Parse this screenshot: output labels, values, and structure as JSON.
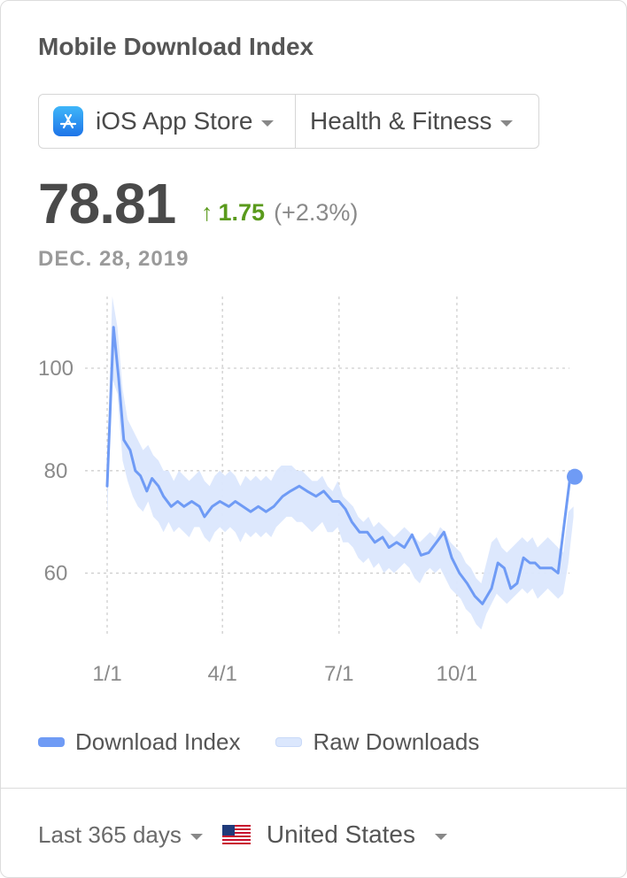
{
  "header": {
    "title": "Mobile Download Index"
  },
  "selector": {
    "store_label": "iOS App Store",
    "category_label": "Health & Fitness"
  },
  "summary": {
    "value": "78.81",
    "change_arrow": "↑",
    "change_abs": "1.75",
    "change_pct": "(+2.3%)",
    "date": "DEC. 28, 2019"
  },
  "colors": {
    "index_line": "#6f9bf5",
    "raw_band": "#dbe7fd",
    "positive_change": "#5a9a1c",
    "grid": "#cfcfcf"
  },
  "chart_data": {
    "type": "line",
    "y_ticks": [
      "100",
      "80",
      "60"
    ],
    "y_tick_values": [
      100,
      80,
      60
    ],
    "ylim": [
      48,
      114
    ],
    "xlim": [
      0,
      365
    ],
    "x_ticks": [
      "1/1",
      "4/1",
      "7/1",
      "10/1"
    ],
    "x_tick_values": [
      0,
      90,
      181,
      273
    ],
    "grid": true,
    "legend_position": "bottom",
    "series": [
      {
        "name": "Download Index",
        "style": "line",
        "x": [
          0,
          5,
          9,
          13,
          18,
          22,
          26,
          31,
          35,
          40,
          44,
          50,
          55,
          60,
          66,
          72,
          76,
          82,
          88,
          95,
          100,
          106,
          112,
          118,
          124,
          130,
          137,
          143,
          150,
          156,
          163,
          169,
          176,
          181,
          186,
          191,
          197,
          203,
          209,
          215,
          220,
          226,
          232,
          238,
          245,
          251,
          257,
          263,
          269,
          275,
          281,
          287,
          293,
          300,
          305,
          310,
          315,
          320,
          325,
          330,
          334,
          338,
          343,
          347,
          352,
          357,
          361,
          365
        ],
        "y": [
          77,
          108,
          98,
          86,
          84,
          80,
          79,
          76,
          78.5,
          77,
          75,
          73,
          74,
          73,
          74,
          73,
          71,
          73,
          74,
          73,
          74,
          73,
          72,
          73,
          72,
          73,
          75,
          76,
          77,
          76,
          75,
          76,
          74,
          74,
          72.5,
          70,
          68,
          68,
          66,
          67,
          65,
          66,
          65,
          67.5,
          63.5,
          64,
          66,
          68,
          63,
          60,
          58,
          55.5,
          54,
          57,
          62,
          61,
          57,
          58,
          63,
          62,
          62,
          61,
          61,
          61,
          60,
          70,
          78,
          78.81
        ]
      },
      {
        "name": "Raw Downloads",
        "style": "band",
        "x": [
          0,
          4,
          8,
          12,
          16,
          20,
          24,
          28,
          32,
          36,
          40,
          44,
          48,
          52,
          56,
          60,
          64,
          68,
          72,
          76,
          80,
          84,
          88,
          92,
          96,
          100,
          104,
          108,
          112,
          116,
          120,
          124,
          128,
          132,
          136,
          140,
          144,
          148,
          152,
          156,
          160,
          164,
          168,
          172,
          176,
          180,
          184,
          188,
          192,
          196,
          200,
          204,
          208,
          212,
          216,
          220,
          224,
          228,
          232,
          236,
          240,
          244,
          248,
          252,
          256,
          260,
          264,
          268,
          272,
          276,
          280,
          284,
          288,
          292,
          296,
          300,
          304,
          308,
          312,
          316,
          320,
          324,
          328,
          332,
          336,
          340,
          344,
          348,
          352,
          356,
          360,
          364
        ],
        "low": [
          71,
          98,
          95,
          82,
          78,
          75,
          73,
          72,
          74,
          71,
          70,
          68,
          70,
          68,
          69,
          68,
          67,
          69,
          69,
          67,
          66,
          68,
          69,
          68,
          69,
          68,
          66,
          68,
          67,
          68,
          67,
          68,
          67,
          69,
          70,
          71,
          71,
          70,
          70,
          69,
          68,
          69,
          70,
          68,
          68,
          69,
          66,
          66,
          65,
          63,
          62,
          63,
          61,
          62,
          60,
          61,
          60,
          61,
          62,
          61,
          59,
          58,
          60,
          61,
          60,
          61,
          59,
          57,
          56,
          55,
          53,
          52,
          50,
          49,
          52,
          54,
          56,
          55,
          54,
          55,
          56,
          57,
          56,
          57,
          55,
          56,
          57,
          56,
          55,
          56,
          62,
          71
        ],
        "high": [
          82,
          114,
          108,
          96,
          90,
          88,
          86,
          84,
          85,
          83,
          82,
          80,
          80,
          78,
          80,
          79,
          78,
          79,
          80,
          78,
          77,
          79,
          80,
          79,
          80,
          79,
          77,
          79,
          78,
          79,
          78,
          79,
          78,
          80,
          81,
          81,
          81,
          80,
          80,
          79,
          78,
          78,
          79,
          77,
          76,
          78,
          75,
          74,
          73,
          71,
          70,
          71,
          69,
          70,
          69,
          68,
          67,
          68,
          69,
          68,
          67,
          66,
          67,
          68,
          67,
          69,
          68,
          66,
          65,
          64,
          62,
          61,
          59,
          58,
          62,
          66,
          67,
          65,
          64,
          65,
          66,
          67,
          66,
          67,
          65,
          66,
          67,
          66,
          65,
          64,
          72,
          73
        ]
      }
    ],
    "highlight_point": {
      "x": 365,
      "y": 78.81
    }
  },
  "legend": {
    "items": [
      "Download Index",
      "Raw Downloads"
    ]
  },
  "footer": {
    "range_label": "Last 365 days",
    "country_label": "United States"
  }
}
